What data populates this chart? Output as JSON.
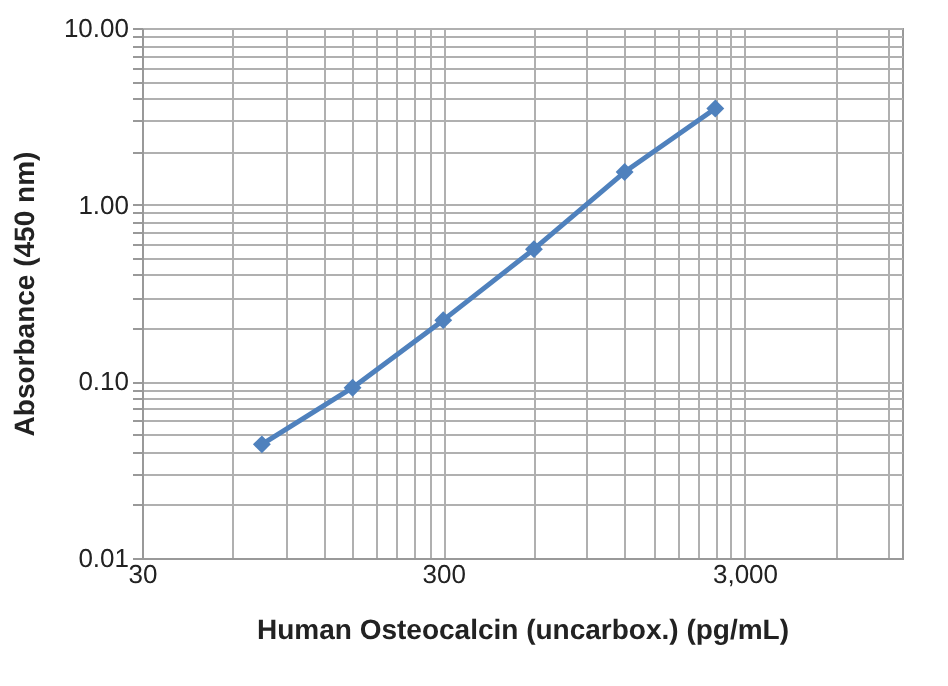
{
  "chart_data": {
    "type": "line",
    "xlabel": "Human Osteocalcin (uncarbox.) (pg/mL)",
    "ylabel": "Absorbance (450 nm)",
    "log": "xy",
    "grid": true,
    "marker": "diamond",
    "line_style": "solid",
    "x": [
      75,
      150,
      300,
      600,
      1200,
      2400
    ],
    "series": [
      {
        "color": "#4f81bd",
        "values": [
          0.044,
          0.092,
          0.222,
          0.56,
          1.53,
          3.5
        ]
      }
    ],
    "xlim": [
      30,
      10000
    ],
    "xticks": [
      {
        "value": 30,
        "label": "30"
      },
      {
        "value": 60,
        "label": null
      },
      {
        "value": 90,
        "label": null
      },
      {
        "value": 120,
        "label": null
      },
      {
        "value": 150,
        "label": null
      },
      {
        "value": 180,
        "label": null
      },
      {
        "value": 210,
        "label": null
      },
      {
        "value": 240,
        "label": null
      },
      {
        "value": 270,
        "label": null
      },
      {
        "value": 300,
        "label": "300"
      },
      {
        "value": 600,
        "label": null
      },
      {
        "value": 900,
        "label": null
      },
      {
        "value": 1200,
        "label": null
      },
      {
        "value": 1500,
        "label": null
      },
      {
        "value": 1800,
        "label": null
      },
      {
        "value": 2100,
        "label": null
      },
      {
        "value": 2400,
        "label": null
      },
      {
        "value": 2700,
        "label": null
      },
      {
        "value": 3000,
        "label": "3,000"
      },
      {
        "value": 6000,
        "label": null
      },
      {
        "value": 9000,
        "label": null
      }
    ],
    "ylim": [
      0.01,
      10
    ],
    "yticks": [
      {
        "value": 0.01,
        "label": "0.01"
      },
      {
        "value": 0.02,
        "label": null
      },
      {
        "value": 0.03,
        "label": null
      },
      {
        "value": 0.04,
        "label": null
      },
      {
        "value": 0.05,
        "label": null
      },
      {
        "value": 0.06,
        "label": null
      },
      {
        "value": 0.07,
        "label": null
      },
      {
        "value": 0.08,
        "label": null
      },
      {
        "value": 0.09,
        "label": null
      },
      {
        "value": 0.1,
        "label": "0.10"
      },
      {
        "value": 0.2,
        "label": null
      },
      {
        "value": 0.3,
        "label": null
      },
      {
        "value": 0.4,
        "label": null
      },
      {
        "value": 0.5,
        "label": null
      },
      {
        "value": 0.6,
        "label": null
      },
      {
        "value": 0.7,
        "label": null
      },
      {
        "value": 0.8,
        "label": null
      },
      {
        "value": 0.9,
        "label": null
      },
      {
        "value": 1,
        "label": "1.00"
      },
      {
        "value": 2,
        "label": null
      },
      {
        "value": 3,
        "label": null
      },
      {
        "value": 4,
        "label": null
      },
      {
        "value": 5,
        "label": null
      },
      {
        "value": 6,
        "label": null
      },
      {
        "value": 7,
        "label": null
      },
      {
        "value": 8,
        "label": null
      },
      {
        "value": 9,
        "label": null
      },
      {
        "value": 10,
        "label": "10.00"
      }
    ]
  }
}
